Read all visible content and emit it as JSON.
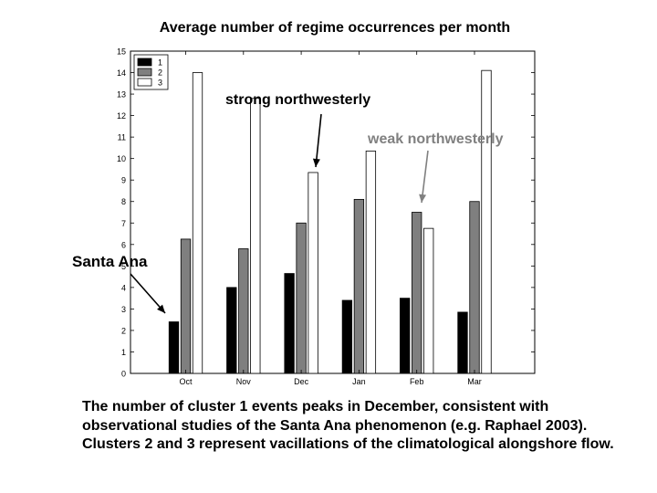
{
  "chart_data": {
    "type": "bar",
    "title": "Average number of regime occurrences per month",
    "xlabel": "",
    "ylabel": "",
    "categories": [
      "Oct",
      "Nov",
      "Dec",
      "Jan",
      "Feb",
      "Mar"
    ],
    "ylim": [
      0,
      15
    ],
    "yticks": [
      0,
      1,
      2,
      3,
      4,
      5,
      6,
      7,
      8,
      9,
      10,
      11,
      12,
      13,
      14,
      15
    ],
    "grid": false,
    "legend": "top-left",
    "series": [
      {
        "name": "1",
        "color": "#000000",
        "values": [
          2.4,
          4.0,
          4.65,
          3.4,
          3.5,
          2.85
        ]
      },
      {
        "name": "2",
        "color": "#7f7f7f",
        "values": [
          6.25,
          5.8,
          7.0,
          8.1,
          7.5,
          8.0
        ]
      },
      {
        "name": "3",
        "color": "#ffffff",
        "values": [
          14.0,
          12.8,
          9.35,
          10.35,
          6.75,
          14.1
        ]
      }
    ],
    "annotations": [
      {
        "text": "strong northwesterly",
        "color": "#000000"
      },
      {
        "text": "weak northwesterly",
        "color": "#808080"
      },
      {
        "text": "Santa Ana",
        "color": "#000000"
      }
    ]
  },
  "caption": "The number of cluster 1 events peaks in December, consistent with observational studies of the Santa Ana phenomenon (e.g. Raphael 2003).  Clusters 2 and 3 represent vacillations of the climatological alongshore flow."
}
